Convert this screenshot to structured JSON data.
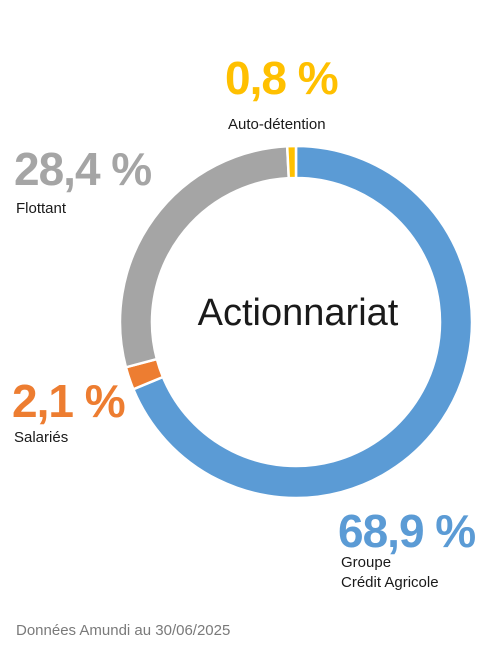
{
  "chart_data": {
    "type": "pie",
    "style": "donut",
    "title": "Actionnariat",
    "slices": [
      {
        "name": "Groupe Crédit Agricole",
        "value": 68.9,
        "value_label": "68,9 %",
        "label_lines": [
          "Groupe",
          "Crédit Agricole"
        ],
        "color": "#5b9bd5"
      },
      {
        "name": "Salariés",
        "value": 2.1,
        "value_label": "2,1 %",
        "label_lines": [
          "Salariés"
        ],
        "color": "#ed7d31"
      },
      {
        "name": "Flottant",
        "value": 28.4,
        "value_label": "28,4 %",
        "label_lines": [
          "Flottant"
        ],
        "color": "#a5a5a5"
      },
      {
        "name": "Auto-détention",
        "value": 0.8,
        "value_label": "0,8 %",
        "label_lines": [
          "Auto-détention"
        ],
        "color": "#ffc000"
      }
    ]
  },
  "source": "Données Amundi au 30/06/2025"
}
